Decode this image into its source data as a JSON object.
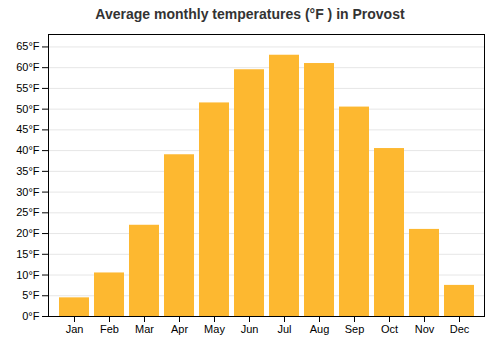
{
  "chart_data": {
    "type": "bar",
    "title": "Average monthly temperatures (°F ) in Provost",
    "categories": [
      "Jan",
      "Feb",
      "Mar",
      "Apr",
      "May",
      "Jun",
      "Jul",
      "Aug",
      "Sep",
      "Oct",
      "Nov",
      "Dec"
    ],
    "values": [
      4.5,
      10.5,
      22.0,
      39.0,
      51.5,
      59.5,
      63.0,
      61.0,
      50.5,
      40.5,
      21.0,
      7.5
    ],
    "color": "#FDB830",
    "ylim": [
      0,
      68
    ],
    "yticks": [
      {
        "value": 0,
        "label": "0°F"
      },
      {
        "value": 5,
        "label": "5°F"
      },
      {
        "value": 10,
        "label": "10°F"
      },
      {
        "value": 15,
        "label": "15°F"
      },
      {
        "value": 20,
        "label": "20°F"
      },
      {
        "value": 25,
        "label": "25°F"
      },
      {
        "value": 30,
        "label": "30°F"
      },
      {
        "value": 35,
        "label": "35°F"
      },
      {
        "value": 40,
        "label": "40°F"
      },
      {
        "value": 45,
        "label": "45°F"
      },
      {
        "value": 50,
        "label": "50°F"
      },
      {
        "value": 55,
        "label": "55°F"
      },
      {
        "value": 60,
        "label": "60°F"
      },
      {
        "value": 65,
        "label": "65°F"
      }
    ],
    "grid": true
  }
}
